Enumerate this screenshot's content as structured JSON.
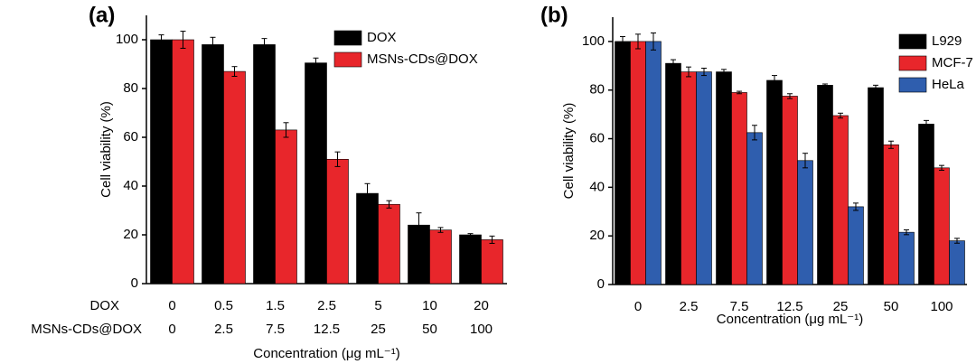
{
  "chart_data": [
    {
      "type": "bar",
      "title": "(a)",
      "ylabel": "Cell viability (%)",
      "xlabel": "Concentration (μg mL⁻¹)",
      "categories_label": "DOX",
      "categories": [
        "0",
        "0.5",
        "1.5",
        "2.5",
        "5",
        "10",
        "20"
      ],
      "categories2_label": "MSNs-CDs@DOX",
      "categories2": [
        "0",
        "2.5",
        "7.5",
        "12.5",
        "25",
        "50",
        "100"
      ],
      "series": [
        {
          "name": "DOX",
          "color": "#000000",
          "values": [
            100,
            98,
            98,
            90.5,
            37,
            24,
            20
          ],
          "errors": [
            2,
            3,
            2.5,
            2,
            4,
            5,
            0.5
          ]
        },
        {
          "name": "MSNs-CDs@DOX",
          "color": "#e8262b",
          "values": [
            100,
            87,
            63,
            51,
            32.5,
            22,
            18
          ],
          "errors": [
            3.5,
            2,
            3,
            3,
            1.5,
            1,
            1.5
          ]
        }
      ],
      "ylim": [
        0,
        110
      ],
      "yticks": [
        0,
        20,
        40,
        60,
        80,
        100
      ],
      "legend": "upper right"
    },
    {
      "type": "bar",
      "title": "(b)",
      "ylabel": "Cell viability (%)",
      "xlabel": "Concentration (μg mL⁻¹)",
      "categories": [
        "0",
        "2.5",
        "7.5",
        "12.5",
        "25",
        "50",
        "100"
      ],
      "series": [
        {
          "name": "L929",
          "color": "#000000",
          "values": [
            100,
            91,
            87.5,
            84,
            82,
            81,
            66
          ],
          "errors": [
            2,
            1.5,
            1,
            2,
            0.5,
            1,
            1.5
          ]
        },
        {
          "name": "MCF-7",
          "color": "#e8262b",
          "values": [
            100,
            87.5,
            79,
            77.5,
            69.5,
            57.5,
            48
          ],
          "errors": [
            3,
            2,
            0.5,
            1,
            1,
            1.5,
            1
          ]
        },
        {
          "name": "HeLa",
          "color": "#2f5eae",
          "values": [
            100,
            87.5,
            62.5,
            51,
            32,
            21.5,
            18
          ],
          "errors": [
            3.5,
            1.5,
            3,
            3,
            1.5,
            1,
            1
          ]
        }
      ],
      "ylim": [
        0,
        110
      ],
      "yticks": [
        0,
        20,
        40,
        60,
        80,
        100
      ],
      "legend": "upper right"
    }
  ]
}
